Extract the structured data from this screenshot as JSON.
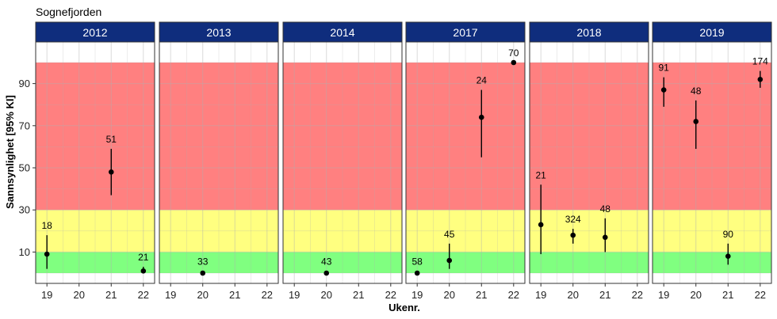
{
  "chart_data": {
    "type": "scatter",
    "title": "Sognefjorden",
    "xlabel": "Ukenr.",
    "ylabel": "Sannsynlighet [95% KI]",
    "x_ticks": [
      19,
      20,
      21,
      22
    ],
    "y_ticks": [
      10,
      30,
      50,
      70,
      90
    ],
    "xlim": [
      18.65,
      22.35
    ],
    "ylim": [
      0,
      100
    ],
    "grid": true,
    "colors": {
      "strip": "#0f2d7d",
      "green_band": "#80ff80",
      "yellow_band": "#ffff80",
      "red_band": "#ff8080",
      "point": "#000000"
    },
    "bands": [
      {
        "from": 0,
        "to": 10,
        "color": "#80ff80"
      },
      {
        "from": 10,
        "to": 30,
        "color": "#ffff80"
      },
      {
        "from": 30,
        "to": 100,
        "color": "#ff8080"
      }
    ],
    "panels": [
      {
        "year": "2012",
        "points": [
          {
            "x": 19,
            "y": 9,
            "lo": 2,
            "hi": 18,
            "label": "18"
          },
          {
            "x": 21,
            "y": 48,
            "lo": 37,
            "hi": 59,
            "label": "51"
          },
          {
            "x": 22,
            "y": 1,
            "lo": 0,
            "hi": 3,
            "label": "21"
          }
        ]
      },
      {
        "year": "2013",
        "points": [
          {
            "x": 20,
            "y": 0,
            "lo": 0,
            "hi": 1,
            "label": "33"
          }
        ]
      },
      {
        "year": "2014",
        "points": [
          {
            "x": 20,
            "y": 0,
            "lo": 0,
            "hi": 1,
            "label": "43"
          }
        ]
      },
      {
        "year": "2017",
        "points": [
          {
            "x": 19,
            "y": 0,
            "lo": 0,
            "hi": 1,
            "label": "58"
          },
          {
            "x": 20,
            "y": 6,
            "lo": 2,
            "hi": 14,
            "label": "45"
          },
          {
            "x": 21,
            "y": 74,
            "lo": 55,
            "hi": 87,
            "label": "24"
          },
          {
            "x": 22,
            "y": 100,
            "lo": 99,
            "hi": 100,
            "label": "70"
          }
        ]
      },
      {
        "year": "2018",
        "points": [
          {
            "x": 19,
            "y": 23,
            "lo": 9,
            "hi": 42,
            "label": "21"
          },
          {
            "x": 20,
            "y": 18,
            "lo": 14,
            "hi": 21,
            "label": "324"
          },
          {
            "x": 21,
            "y": 17,
            "lo": 10,
            "hi": 26,
            "label": "48"
          }
        ]
      },
      {
        "year": "2019",
        "points": [
          {
            "x": 19,
            "y": 87,
            "lo": 79,
            "hi": 93,
            "label": "91"
          },
          {
            "x": 20,
            "y": 72,
            "lo": 59,
            "hi": 82,
            "label": "48"
          },
          {
            "x": 21,
            "y": 8,
            "lo": 4,
            "hi": 14,
            "label": "90"
          },
          {
            "x": 22,
            "y": 92,
            "lo": 88,
            "hi": 96,
            "label": "174"
          }
        ]
      }
    ]
  }
}
